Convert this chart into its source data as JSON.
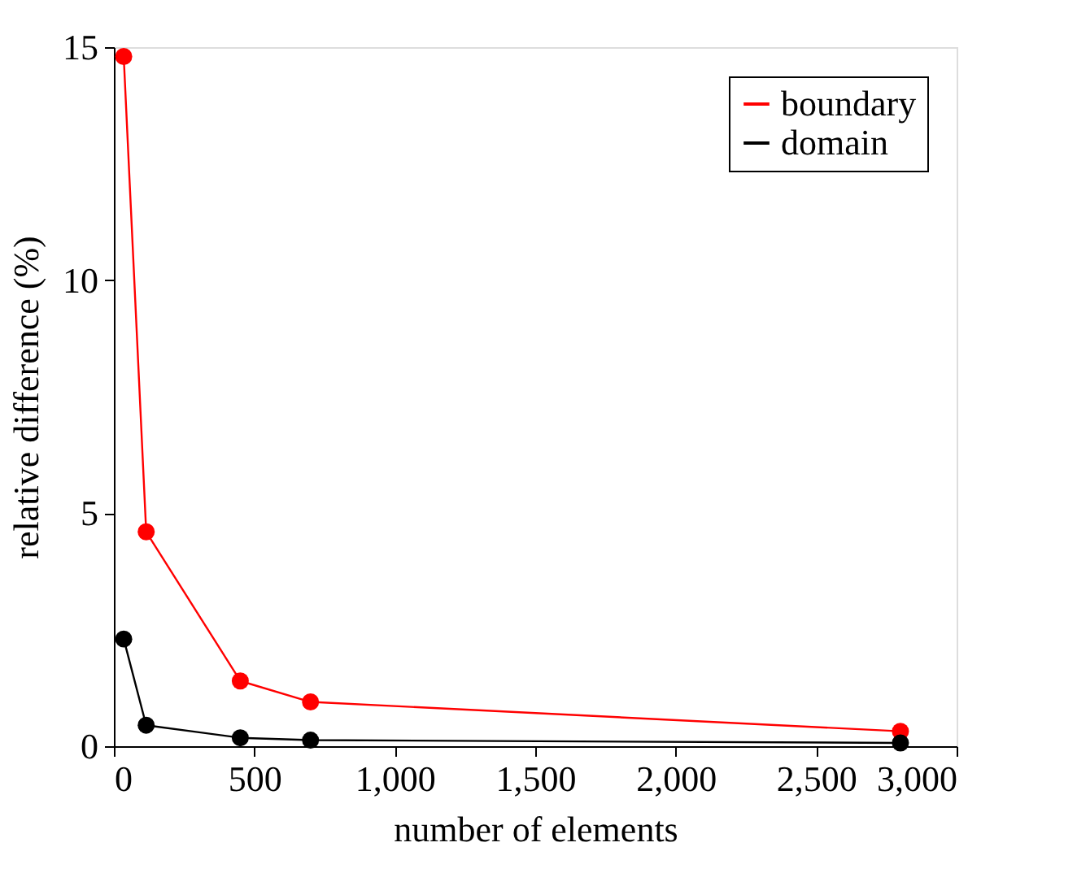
{
  "chart_data": {
    "type": "line",
    "xlabel": "number of elements",
    "ylabel": "relative difference (%)",
    "xlim": [
      0,
      3000
    ],
    "ylim": [
      0,
      15
    ],
    "xticks": [
      0,
      500,
      {
        "value": 1000,
        "label": "1,000"
      },
      {
        "value": 1500,
        "label": "1,500"
      },
      {
        "value": 2000,
        "label": "2,000"
      },
      {
        "value": 2500,
        "label": "2,500"
      },
      {
        "value": 3000,
        "label": "3,000"
      }
    ],
    "yticks": [
      0,
      5,
      10,
      15
    ],
    "grid": false,
    "legend": "top right",
    "marker": "circle",
    "line_style": "solid",
    "series": [
      {
        "name": "boundary",
        "color": "#ff0000",
        "x": [
          35,
          115,
          450,
          700,
          2800
        ],
        "values": [
          14.8,
          4.6,
          1.4,
          0.95,
          0.32
        ]
      },
      {
        "name": "domain",
        "color": "#000000",
        "x": [
          35,
          115,
          450,
          700,
          2800
        ],
        "values": [
          2.3,
          0.45,
          0.18,
          0.13,
          0.07
        ]
      }
    ]
  }
}
